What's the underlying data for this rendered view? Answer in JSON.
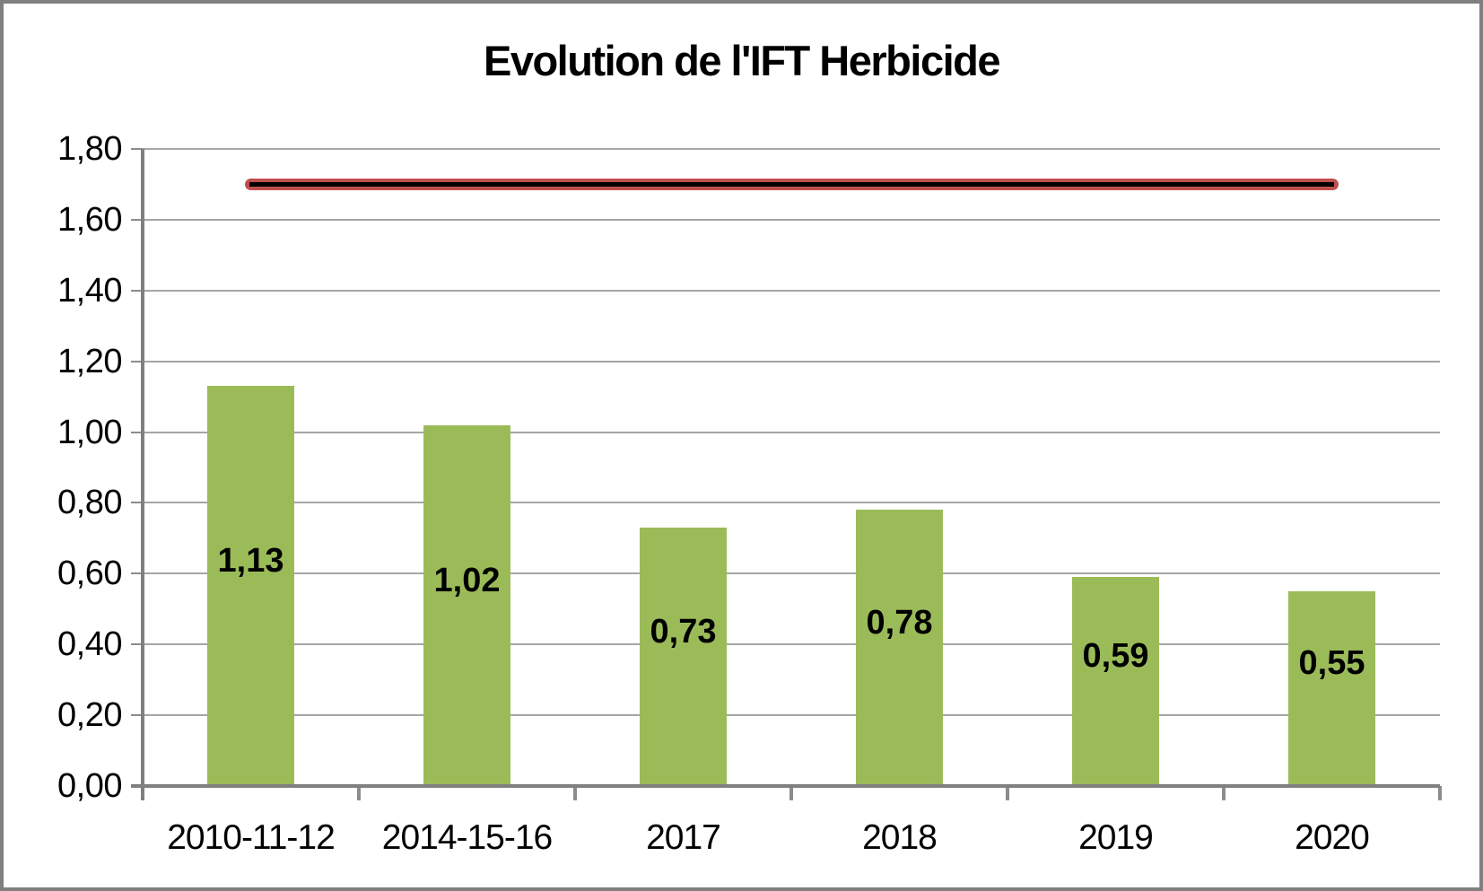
{
  "chart_data": {
    "type": "bar",
    "title": "Evolution de l'IFT Herbicide",
    "categories": [
      "2010-11-12",
      "2014-15-16",
      "2017",
      "2018",
      "2019",
      "2020"
    ],
    "series": [
      {
        "type": "bar",
        "values": [
          1.13,
          1.02,
          0.73,
          0.78,
          0.59,
          0.55
        ],
        "value_labels": [
          "1,13",
          "1,02",
          "0,73",
          "0,78",
          "0,59",
          "0,55"
        ],
        "color": "#9BBB59"
      },
      {
        "type": "line",
        "values": [
          1.7,
          1.7,
          1.7,
          1.7,
          1.7,
          1.7
        ],
        "color": "#C0504D",
        "core_color": "#000000"
      }
    ],
    "xlabel": "",
    "ylabel": "",
    "ylim": [
      0.0,
      1.8
    ],
    "ytick_step": 0.2,
    "yticks": [
      0.0,
      0.2,
      0.4,
      0.6,
      0.8,
      1.0,
      1.2,
      1.4,
      1.6,
      1.8
    ],
    "ytick_labels": [
      "0,00",
      "0,20",
      "0,40",
      "0,60",
      "0,80",
      "1,00",
      "1,20",
      "1,40",
      "1,60",
      "1,80"
    ],
    "grid": true,
    "legend_position": "none",
    "colors": {
      "grid": "#A6A6A6",
      "axis": "#808080",
      "tick": "#8C8C8C",
      "text": "#000000",
      "background": "#FFFFFF",
      "border": "#808080"
    }
  }
}
